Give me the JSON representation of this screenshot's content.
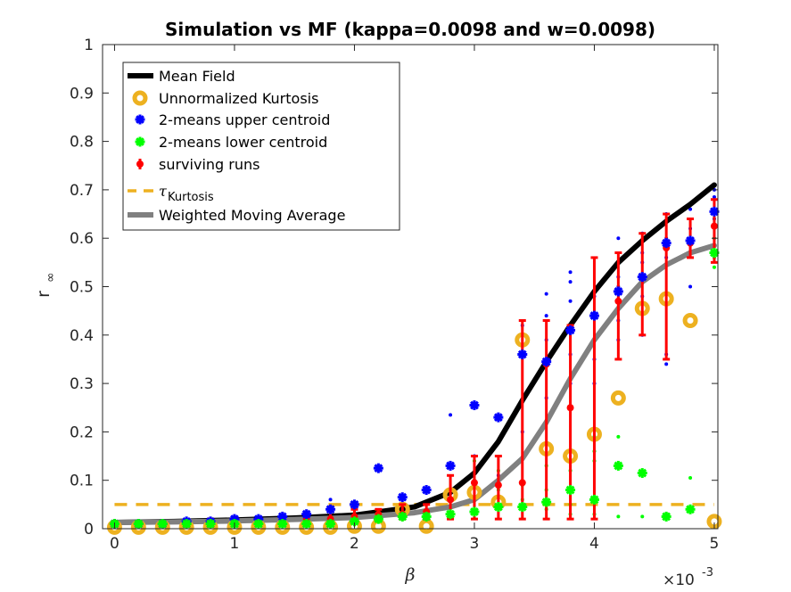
{
  "chart_data": {
    "type": "scatter",
    "title": "Simulation vs MF (kappa=0.0098 and w=0.0098)",
    "xlabel": "β",
    "ylabel": "r",
    "ylabel_sub": "∞",
    "x_exponent": "×10",
    "x_exponent_power": "-3",
    "xlim": [
      -0.0001,
      0.00503
    ],
    "ylim": [
      0,
      1
    ],
    "xticks": [
      0,
      0.001,
      0.002,
      0.003,
      0.004,
      0.005
    ],
    "xtick_labels": [
      "0",
      "1",
      "2",
      "3",
      "4",
      "5"
    ],
    "yticks": [
      0,
      0.1,
      0.2,
      0.3,
      0.4,
      0.5,
      0.6,
      0.7,
      0.8,
      0.9,
      1
    ],
    "ytick_labels": [
      "0",
      "0.1",
      "0.2",
      "0.3",
      "0.4",
      "0.5",
      "0.6",
      "0.7",
      "0.8",
      "0.9",
      "1"
    ],
    "grid": false,
    "legend_position": "top-left",
    "legend": [
      {
        "label": "Mean Field",
        "style": "line",
        "color": "#000000"
      },
      {
        "label": "Unnormalized Kurtosis",
        "style": "circle",
        "color": "#EDB120"
      },
      {
        "label": "2-means upper centroid",
        "style": "star",
        "color": "#0000FF"
      },
      {
        "label": "2-means lower centroid",
        "style": "star",
        "color": "#00FF00"
      },
      {
        "label": "surviving runs",
        "style": "errorbar",
        "color": "#FF0000"
      },
      {
        "label": "τ",
        "label_sub": "Kurtosis",
        "style": "dashed",
        "color": "#EDB120"
      },
      {
        "label": "Weighted Moving Average",
        "style": "line",
        "color": "#808080"
      }
    ],
    "x": [
      0,
      0.0002,
      0.0004,
      0.0006,
      0.0008,
      0.001,
      0.0012,
      0.0014,
      0.0016,
      0.0018,
      0.002,
      0.0022,
      0.0024,
      0.0026,
      0.0028,
      0.003,
      0.0032,
      0.0034,
      0.0036,
      0.0038,
      0.004,
      0.0042,
      0.0044,
      0.0046,
      0.0048,
      0.005
    ],
    "series": [
      {
        "name": "Mean Field",
        "type": "line",
        "color": "#000000",
        "x": [
          0,
          0.0005,
          0.001,
          0.0015,
          0.002,
          0.0025,
          0.0028,
          0.003,
          0.0032,
          0.0034,
          0.0036,
          0.0038,
          0.004,
          0.0042,
          0.0044,
          0.0046,
          0.0048,
          0.005
        ],
        "values": [
          0.013,
          0.015,
          0.018,
          0.022,
          0.028,
          0.045,
          0.075,
          0.115,
          0.18,
          0.265,
          0.345,
          0.42,
          0.49,
          0.55,
          0.595,
          0.635,
          0.67,
          0.71
        ]
      },
      {
        "name": "Weighted Moving Average",
        "type": "line",
        "color": "#808080",
        "x": [
          0,
          0.0005,
          0.001,
          0.0015,
          0.002,
          0.0025,
          0.0028,
          0.003,
          0.0032,
          0.0034,
          0.0036,
          0.0038,
          0.004,
          0.0042,
          0.0044,
          0.0046,
          0.0048,
          0.005
        ],
        "values": [
          0.013,
          0.014,
          0.016,
          0.019,
          0.023,
          0.033,
          0.045,
          0.06,
          0.1,
          0.145,
          0.22,
          0.31,
          0.39,
          0.455,
          0.51,
          0.545,
          0.57,
          0.585
        ]
      },
      {
        "name": "Unnormalized Kurtosis",
        "type": "marker",
        "color": "#EDB120",
        "values": [
          0.003,
          0.003,
          0.003,
          0.003,
          0.003,
          0.003,
          0.003,
          0.003,
          0.003,
          0.003,
          0.005,
          0.005,
          0.04,
          0.005,
          0.07,
          0.075,
          0.055,
          0.39,
          0.165,
          0.15,
          0.195,
          0.27,
          0.455,
          0.475,
          0.43,
          0.015
        ]
      },
      {
        "name": "2-means upper centroid",
        "type": "marker",
        "color": "#0000FF",
        "values": [
          0.01,
          0.01,
          0.01,
          0.015,
          0.015,
          0.02,
          0.02,
          0.025,
          0.03,
          0.04,
          0.05,
          0.125,
          0.065,
          0.08,
          0.13,
          0.255,
          0.23,
          0.36,
          0.345,
          0.41,
          0.44,
          0.49,
          0.52,
          0.59,
          0.595,
          0.655
        ]
      },
      {
        "name": "2-means lower centroid",
        "type": "marker",
        "color": "#00FF00",
        "values": [
          0.01,
          0.01,
          0.01,
          0.01,
          0.01,
          0.01,
          0.01,
          0.01,
          0.01,
          0.01,
          0.015,
          0.02,
          0.025,
          0.025,
          0.03,
          0.035,
          0.045,
          0.045,
          0.055,
          0.08,
          0.06,
          0.13,
          0.115,
          0.025,
          0.04,
          0.57
        ]
      },
      {
        "name": "surviving runs",
        "type": "errorbar",
        "color": "#FF0000",
        "values": [
          0.01,
          0.01,
          0.01,
          0.01,
          0.01,
          0.015,
          0.015,
          0.015,
          0.02,
          0.02,
          0.025,
          0.03,
          0.03,
          0.035,
          0.06,
          0.095,
          0.09,
          0.095,
          0.34,
          0.25,
          0.44,
          0.47,
          0.52,
          0.58,
          0.59,
          0.625
        ],
        "lower": [
          0.005,
          0.005,
          0.005,
          0.005,
          0.005,
          0.01,
          0.01,
          0.01,
          0.01,
          0.01,
          0.015,
          0.02,
          0.02,
          0.02,
          0.02,
          0.02,
          0.02,
          0.02,
          0.02,
          0.02,
          0.02,
          0.35,
          0.4,
          0.35,
          0.56,
          0.55
        ],
        "upper": [
          0.015,
          0.015,
          0.015,
          0.015,
          0.02,
          0.02,
          0.02,
          0.025,
          0.03,
          0.04,
          0.04,
          0.04,
          0.05,
          0.05,
          0.11,
          0.15,
          0.15,
          0.43,
          0.43,
          0.42,
          0.56,
          0.57,
          0.61,
          0.65,
          0.64,
          0.68
        ]
      },
      {
        "name": "τ_Kurtosis",
        "type": "hline",
        "color": "#EDB120",
        "y": 0.05
      }
    ],
    "raw_points": {
      "blue": [
        [
          0.0018,
          0.06
        ],
        [
          0.0026,
          0.05
        ],
        [
          0.0028,
          0.235
        ],
        [
          0.003,
          0.15
        ],
        [
          0.0032,
          0.11
        ],
        [
          0.0034,
          0.2
        ],
        [
          0.0034,
          0.42
        ],
        [
          0.0036,
          0.485
        ],
        [
          0.0036,
          0.44
        ],
        [
          0.0036,
          0.39
        ],
        [
          0.0036,
          0.27
        ],
        [
          0.0038,
          0.47
        ],
        [
          0.0038,
          0.36
        ],
        [
          0.0038,
          0.3
        ],
        [
          0.0038,
          0.53
        ],
        [
          0.0038,
          0.51
        ],
        [
          0.004,
          0.48
        ],
        [
          0.004,
          0.44
        ],
        [
          0.004,
          0.39
        ],
        [
          0.004,
          0.35
        ],
        [
          0.004,
          0.3
        ],
        [
          0.0042,
          0.6
        ],
        [
          0.0042,
          0.43
        ],
        [
          0.0042,
          0.39
        ],
        [
          0.0042,
          0.5
        ],
        [
          0.0042,
          0.52
        ],
        [
          0.0044,
          0.61
        ],
        [
          0.0044,
          0.48
        ],
        [
          0.0044,
          0.4
        ],
        [
          0.0044,
          0.55
        ],
        [
          0.0044,
          0.57
        ],
        [
          0.0046,
          0.65
        ],
        [
          0.0046,
          0.6
        ],
        [
          0.0046,
          0.36
        ],
        [
          0.0046,
          0.34
        ],
        [
          0.0046,
          0.56
        ],
        [
          0.0048,
          0.66
        ],
        [
          0.0048,
          0.62
        ],
        [
          0.0048,
          0.5
        ],
        [
          0.0048,
          0.57
        ],
        [
          0.005,
          0.7
        ],
        [
          0.005,
          0.685
        ],
        [
          0.005,
          0.64
        ],
        [
          0.005,
          0.6
        ]
      ],
      "green": [
        [
          0.003,
          0.14
        ],
        [
          0.003,
          0.1
        ],
        [
          0.003,
          0.06
        ],
        [
          0.0032,
          0.12
        ],
        [
          0.0032,
          0.08
        ],
        [
          0.0034,
          0.09
        ],
        [
          0.0034,
          0.06
        ],
        [
          0.0036,
          0.13
        ],
        [
          0.0036,
          0.08
        ],
        [
          0.0036,
          0.04
        ],
        [
          0.0038,
          0.12
        ],
        [
          0.0038,
          0.05
        ],
        [
          0.0038,
          0.03
        ],
        [
          0.004,
          0.19
        ],
        [
          0.004,
          0.16
        ],
        [
          0.004,
          0.14
        ],
        [
          0.004,
          0.03
        ],
        [
          0.0042,
          0.19
        ],
        [
          0.0042,
          0.025
        ],
        [
          0.0044,
          0.025
        ],
        [
          0.0046,
          0.03
        ],
        [
          0.0048,
          0.105
        ],
        [
          0.005,
          0.6
        ],
        [
          0.005,
          0.56
        ],
        [
          0.005,
          0.54
        ]
      ]
    }
  }
}
